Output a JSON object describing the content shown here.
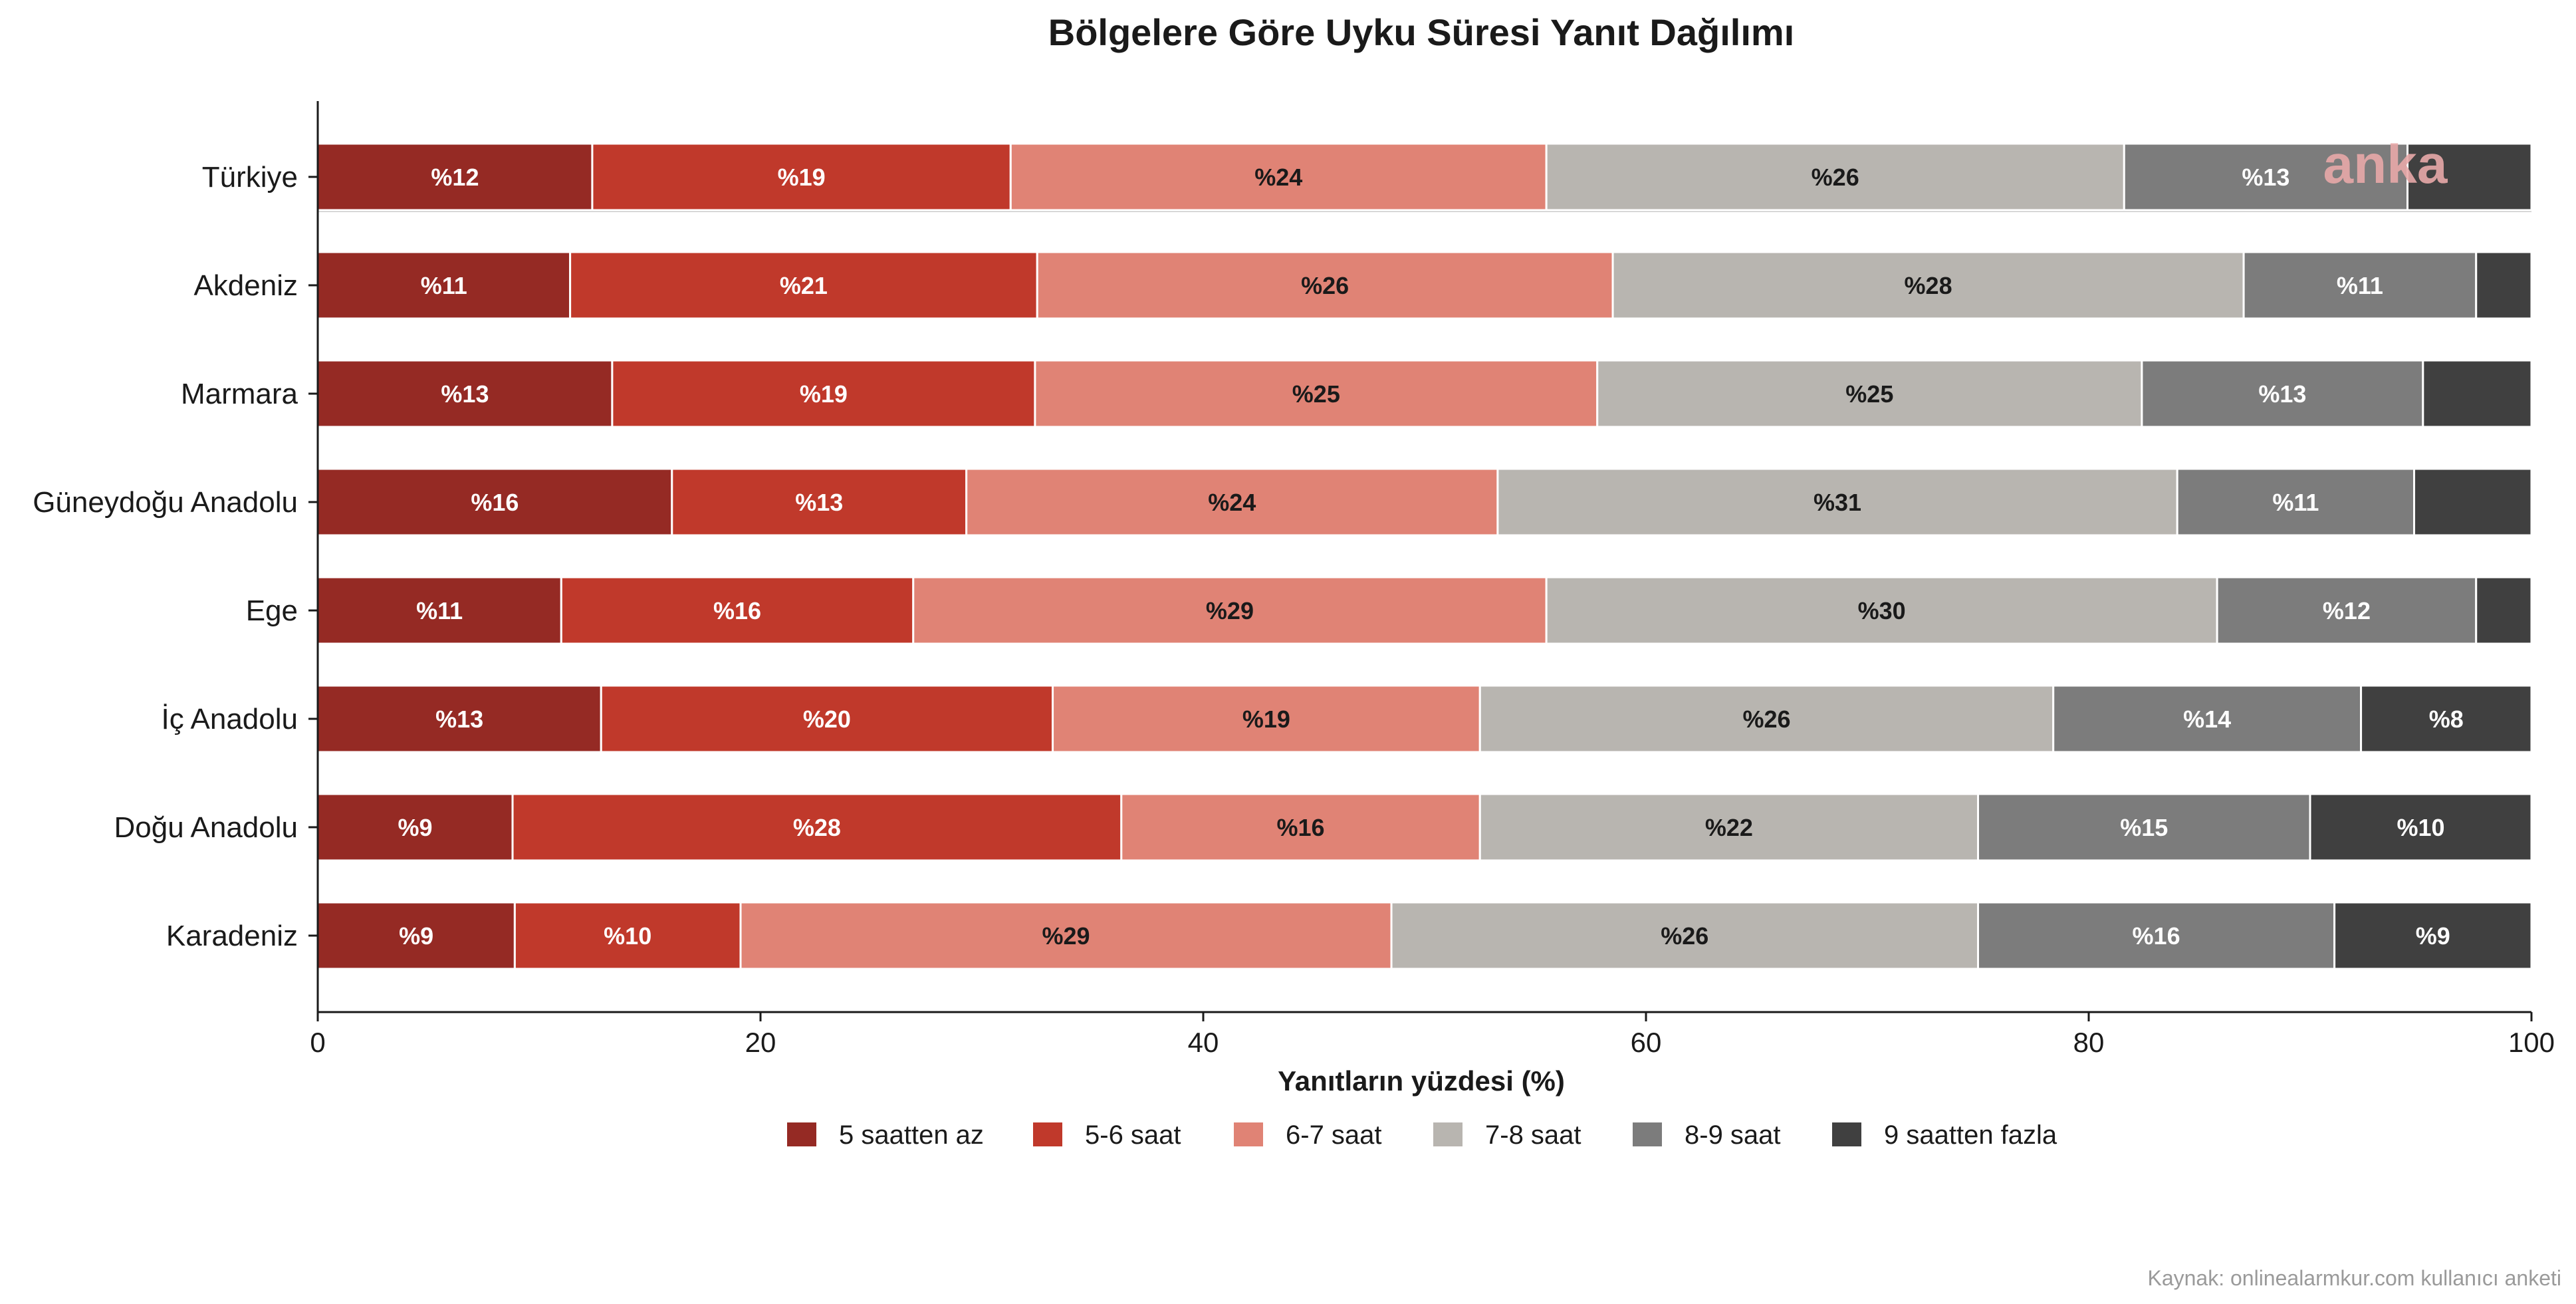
{
  "chart_data": {
    "type": "bar",
    "orientation": "horizontal",
    "stacked": true,
    "title": "Bölgelere Göre Uyku Süresi Yanıt Dağılımı",
    "xlabel": "Yanıtların yüzdesi (%)",
    "ylabel": "",
    "xlim": [
      0,
      100
    ],
    "xticks": [
      0,
      20,
      40,
      60,
      80,
      100
    ],
    "legend_position": "bottom",
    "grid": false,
    "categories": [
      "Türkiye",
      "Akdeniz",
      "Marmara",
      "Güneydoğu Anadolu",
      "Ege",
      "İç Anadolu",
      "Doğu Anadolu",
      "Karadeniz"
    ],
    "series": [
      {
        "name": "5 saatten az",
        "color": "#952a24",
        "values": [
          12.4,
          11.4,
          13.3,
          16.0,
          11.0,
          12.8,
          8.8,
          8.9
        ],
        "labels": [
          "%12",
          "%11",
          "%13",
          "%16",
          "%11",
          "%13",
          "%9",
          "%9"
        ]
      },
      {
        "name": "5-6 saat",
        "color": "#c0392b",
        "values": [
          18.9,
          21.1,
          19.1,
          13.3,
          15.9,
          20.4,
          27.5,
          10.2
        ],
        "labels": [
          "%19",
          "%21",
          "%19",
          "%13",
          "%16",
          "%20",
          "%28",
          "%10"
        ]
      },
      {
        "name": "6-7 saat",
        "color": "#e08375",
        "values": [
          24.2,
          26.0,
          25.4,
          24.0,
          28.6,
          19.3,
          16.2,
          29.4
        ],
        "labels": [
          "%24",
          "%26",
          "%25",
          "%24",
          "%29",
          "%19",
          "%16",
          "%29"
        ]
      },
      {
        "name": "7-8 saat",
        "color": "#b8b5b0",
        "values": [
          26.1,
          28.5,
          24.6,
          30.7,
          30.3,
          25.9,
          22.5,
          26.5
        ],
        "labels": [
          "%26",
          "%28",
          "%25",
          "%31",
          "%30",
          "%26",
          "%22",
          "%26"
        ]
      },
      {
        "name": "8-9 saat",
        "color": "#7c7c7c",
        "values": [
          12.8,
          10.5,
          12.7,
          10.7,
          11.7,
          13.9,
          15.0,
          16.1
        ],
        "labels": [
          "%13",
          "%11",
          "%13",
          "%11",
          "%12",
          "%14",
          "%15",
          "%16"
        ]
      },
      {
        "name": "9 saatten fazla",
        "color": "#404040",
        "values": [
          5.6,
          2.5,
          4.9,
          5.3,
          2.5,
          7.7,
          10.0,
          8.9
        ],
        "labels": [
          "",
          "",
          "",
          "",
          "",
          "%8",
          "%10",
          "%9"
        ]
      }
    ]
  },
  "watermark": "anka",
  "source_note": "Kaynak: onlinealarmkur.com kullanıcı anketi"
}
